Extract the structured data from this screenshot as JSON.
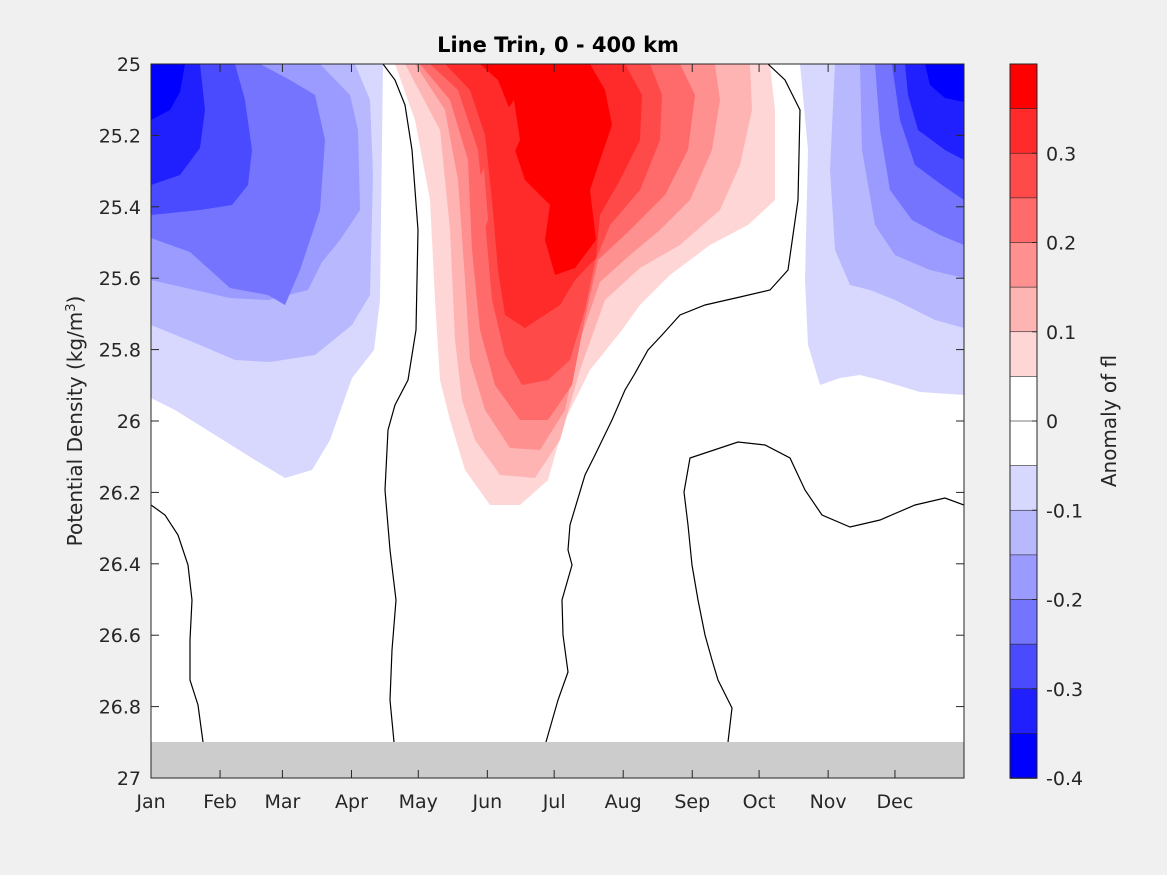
{
  "chart_data": {
    "type": "heatmap",
    "subtype": "filled-contour",
    "title": "Line Trin, 0 - 400 km",
    "ylabel_main": "Potential Density (kg/m",
    "ylabel_sup": "3",
    "ylabel_close": ")",
    "colorbar_label": "Anomaly of fl",
    "x_ticks": [
      "Jan",
      "Feb",
      "Mar",
      "Apr",
      "May",
      "Jun",
      "Jul",
      "Aug",
      "Sep",
      "Oct",
      "Nov",
      "Dec"
    ],
    "x_tick_days": [
      0,
      31,
      59,
      90,
      120,
      151,
      181,
      212,
      243,
      273,
      304,
      334
    ],
    "xlim": [
      0,
      365
    ],
    "y_ticks": [
      "25",
      "25.2",
      "25.4",
      "25.6",
      "25.8",
      "26",
      "26.2",
      "26.4",
      "26.6",
      "26.8",
      "27"
    ],
    "ylim": [
      25,
      27
    ],
    "y_direction": "reversed",
    "colorbar_ticks": [
      "0.3",
      "0.2",
      "0.1",
      "0",
      "-0.1",
      "-0.2",
      "-0.3",
      "-0.4"
    ],
    "colorbar_tick_values": [
      0.3,
      0.2,
      0.1,
      0,
      -0.1,
      -0.2,
      -0.3,
      -0.4
    ],
    "clim": [
      -0.4,
      0.4
    ],
    "contour_levels": [
      -0.35,
      -0.3,
      -0.25,
      -0.2,
      -0.15,
      -0.1,
      -0.05,
      0.05,
      0.1,
      0.15,
      0.2,
      0.25,
      0.3,
      0.35
    ],
    "masked_region": {
      "y_from": 26.9,
      "y_to": 27,
      "color": "#cccccc"
    },
    "features": [
      {
        "name": "negative anomaly core",
        "month": "Jan",
        "density_range": [
          25,
          25.9
        ],
        "min": -0.35
      },
      {
        "name": "positive anomaly core",
        "month": "Jun-Jul",
        "density_range": [
          25,
          26.25
        ],
        "max": 0.35
      },
      {
        "name": "negative anomaly core",
        "month": "Dec",
        "density_range": [
          25,
          25.95
        ],
        "min": -0.35
      }
    ],
    "colors": {
      "neg_4": "#0000ff",
      "neg_3": "#2020ff",
      "neg_2": "#4a4aff",
      "neg_1": "#7474ff",
      "neg_0": "#9a9aff",
      "neg_b": "#b8b8ff",
      "neg_a": "#d8d8ff",
      "zero": "#ffffff",
      "pos_a": "#ffd6d6",
      "pos_b": "#ffb4b4",
      "pos_0": "#ff9090",
      "pos_1": "#ff6a6a",
      "pos_2": "#ff4a4a",
      "pos_3": "#ff2a2a",
      "pos_4": "#ff0000"
    }
  }
}
